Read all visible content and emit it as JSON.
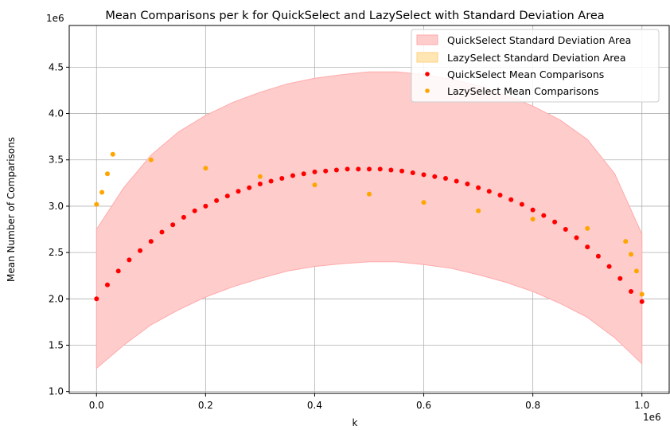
{
  "chart_data": {
    "type": "scatter",
    "title": "Mean Comparisons per k for QuickSelect and LazySelect with Standard Deviation Area",
    "xlabel": "k",
    "ylabel": "Mean Number of Comparisons",
    "x_offset_text": "1e6",
    "y_offset_text": "1e6",
    "xlim": [
      -0.05,
      1.05
    ],
    "ylim": [
      0.98,
      4.95
    ],
    "x_scale_factor": 1000000,
    "y_scale_factor": 1000000,
    "xticks": [
      0.0,
      0.2,
      0.4,
      0.6,
      0.8,
      1.0
    ],
    "xtick_labels": [
      "0.0",
      "0.2",
      "0.4",
      "0.6",
      "0.8",
      "1.0"
    ],
    "yticks": [
      1.0,
      1.5,
      2.0,
      2.5,
      3.0,
      3.5,
      4.0,
      4.5
    ],
    "ytick_labels": [
      "1.0",
      "1.5",
      "2.0",
      "2.5",
      "3.0",
      "3.5",
      "4.0",
      "4.5"
    ],
    "grid": true,
    "legend_position": "top-right",
    "legend": [
      {
        "label": "QuickSelect Standard Deviation Area",
        "kind": "area",
        "color": "#ffcccc"
      },
      {
        "label": "LazySelect Standard Deviation Area",
        "kind": "area",
        "color": "#ffe6b3"
      },
      {
        "label": "QuickSelect Mean Comparisons",
        "kind": "point",
        "color": "#ff0000"
      },
      {
        "label": "LazySelect Mean Comparisons",
        "kind": "point",
        "color": "#ffa500"
      }
    ],
    "colors": {
      "quick_points": "#ff0000",
      "lazy_points": "#ffa500",
      "quick_area_fill": "#ffcccc",
      "quick_area_edge": "#ffaaaa",
      "lazy_area_fill": "#ffe6b3"
    },
    "series": [
      {
        "name": "QuickSelect Mean Comparisons",
        "kind": "scatter",
        "x": [
          0.0,
          0.02,
          0.04,
          0.06,
          0.08,
          0.1,
          0.12,
          0.14,
          0.16,
          0.18,
          0.2,
          0.22,
          0.24,
          0.26,
          0.28,
          0.3,
          0.32,
          0.34,
          0.36,
          0.38,
          0.4,
          0.42,
          0.44,
          0.46,
          0.48,
          0.5,
          0.52,
          0.54,
          0.56,
          0.58,
          0.6,
          0.62,
          0.64,
          0.66,
          0.68,
          0.7,
          0.72,
          0.74,
          0.76,
          0.78,
          0.8,
          0.82,
          0.84,
          0.86,
          0.88,
          0.9,
          0.92,
          0.94,
          0.96,
          0.98,
          1.0
        ],
        "y": [
          2.0,
          2.15,
          2.3,
          2.42,
          2.52,
          2.62,
          2.72,
          2.8,
          2.88,
          2.95,
          3.0,
          3.06,
          3.11,
          3.16,
          3.2,
          3.24,
          3.27,
          3.3,
          3.33,
          3.35,
          3.37,
          3.38,
          3.39,
          3.4,
          3.4,
          3.4,
          3.4,
          3.39,
          3.38,
          3.36,
          3.34,
          3.32,
          3.3,
          3.27,
          3.24,
          3.2,
          3.16,
          3.12,
          3.07,
          3.02,
          2.96,
          2.9,
          2.83,
          2.75,
          2.66,
          2.56,
          2.46,
          2.35,
          2.22,
          2.08,
          1.97
        ]
      },
      {
        "name": "LazySelect Mean Comparisons",
        "kind": "scatter",
        "x": [
          0.0,
          0.01,
          0.02,
          0.03,
          0.1,
          0.2,
          0.3,
          0.4,
          0.5,
          0.6,
          0.7,
          0.8,
          0.9,
          0.97,
          0.98,
          0.99,
          1.0
        ],
        "y": [
          3.02,
          3.15,
          3.35,
          3.56,
          3.5,
          3.41,
          3.32,
          3.23,
          3.13,
          3.04,
          2.95,
          2.86,
          2.76,
          2.62,
          2.48,
          2.3,
          2.05
        ]
      },
      {
        "name": "QuickSelect Standard Deviation Area",
        "kind": "band",
        "x": [
          0.0,
          0.05,
          0.1,
          0.15,
          0.2,
          0.25,
          0.3,
          0.35,
          0.4,
          0.45,
          0.5,
          0.55,
          0.6,
          0.65,
          0.7,
          0.75,
          0.8,
          0.85,
          0.9,
          0.95,
          1.0
        ],
        "lower": [
          1.25,
          1.5,
          1.72,
          1.88,
          2.02,
          2.13,
          2.22,
          2.3,
          2.35,
          2.38,
          2.4,
          2.4,
          2.37,
          2.33,
          2.26,
          2.18,
          2.08,
          1.95,
          1.8,
          1.58,
          1.3
        ],
        "upper": [
          2.75,
          3.2,
          3.55,
          3.8,
          3.98,
          4.12,
          4.23,
          4.32,
          4.38,
          4.42,
          4.45,
          4.45,
          4.42,
          4.37,
          4.3,
          4.2,
          4.08,
          3.93,
          3.72,
          3.35,
          2.7
        ]
      }
    ]
  }
}
